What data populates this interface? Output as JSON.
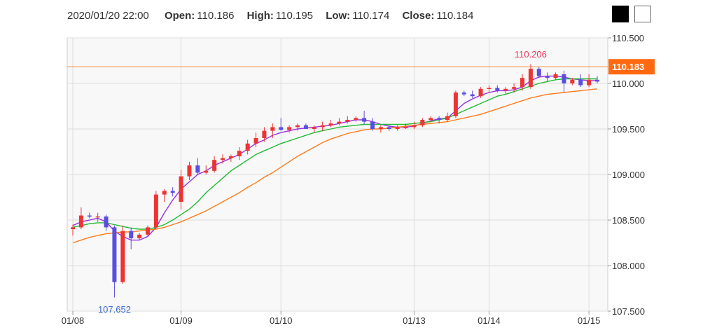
{
  "header": {
    "datetime": "2020/01/20 22:00",
    "open_label": "Open:",
    "open_value": "110.186",
    "high_label": "High:",
    "high_value": "110.195",
    "low_label": "Low:",
    "low_value": "110.174",
    "close_label": "Close:",
    "close_value": "110.184"
  },
  "theme_buttons": [
    "dark",
    "light"
  ],
  "colors": {
    "up": "#ee3333",
    "down": "#5a4ee0",
    "ma_short": "#9b30e0",
    "ma_mid": "#22bb33",
    "ma_long": "#ff7a1a",
    "current_price_line": "#f08a3a",
    "current_price_badge": "#ff6a10",
    "high_annotation": "#e8365a",
    "low_annotation": "#3a6ad0",
    "plot_bg": "#f8f8f8",
    "grid": "#dddddd"
  },
  "chart_data": {
    "type": "candlestick",
    "ylim": [
      107.5,
      110.5
    ],
    "y_ticks": [
      "107.500",
      "108.000",
      "108.500",
      "109.000",
      "109.500",
      "110.000",
      "110.500"
    ],
    "x_ticks": [
      {
        "label": "01/08",
        "index": 0
      },
      {
        "label": "01/09",
        "index": 13
      },
      {
        "label": "01/10",
        "index": 25
      },
      {
        "label": "01/13",
        "index": 41
      },
      {
        "label": "01/14",
        "index": 50
      },
      {
        "label": "01/15",
        "index": 62
      }
    ],
    "current_price": 110.183,
    "current_price_label": "110.183",
    "high_marker": {
      "label": "110.206",
      "value": 110.206,
      "index": 55
    },
    "low_marker": {
      "label": "107.652",
      "value": 107.652,
      "index": 5
    },
    "candles": [
      [
        108.4,
        108.45,
        108.33,
        108.42
      ],
      [
        108.42,
        108.64,
        108.4,
        108.55
      ],
      [
        108.55,
        108.58,
        108.52,
        108.54
      ],
      [
        108.54,
        108.58,
        108.48,
        108.54
      ],
      [
        108.54,
        108.56,
        108.38,
        108.42
      ],
      [
        108.42,
        108.44,
        107.65,
        107.82
      ],
      [
        107.82,
        108.44,
        107.8,
        108.38
      ],
      [
        108.38,
        108.42,
        108.18,
        108.3
      ],
      [
        108.3,
        108.36,
        108.28,
        108.34
      ],
      [
        108.34,
        108.44,
        108.32,
        108.42
      ],
      [
        108.42,
        108.82,
        108.4,
        108.78
      ],
      [
        108.78,
        108.84,
        108.7,
        108.82
      ],
      [
        108.82,
        108.86,
        108.76,
        108.8
      ],
      [
        108.7,
        109.05,
        108.62,
        108.98
      ],
      [
        108.98,
        109.14,
        108.94,
        109.1
      ],
      [
        109.1,
        109.18,
        109.0,
        109.02
      ],
      [
        109.02,
        109.1,
        109.0,
        109.04
      ],
      [
        109.04,
        109.2,
        109.02,
        109.16
      ],
      [
        109.16,
        109.22,
        109.12,
        109.18
      ],
      [
        109.18,
        109.22,
        109.14,
        109.2
      ],
      [
        109.2,
        109.3,
        109.16,
        109.26
      ],
      [
        109.26,
        109.38,
        109.22,
        109.34
      ],
      [
        109.34,
        109.46,
        109.3,
        109.4
      ],
      [
        109.4,
        109.52,
        109.36,
        109.48
      ],
      [
        109.48,
        109.56,
        109.4,
        109.52
      ],
      [
        109.52,
        109.62,
        109.48,
        109.49
      ],
      [
        109.49,
        109.54,
        109.46,
        109.52
      ],
      [
        109.52,
        109.56,
        109.48,
        109.54
      ],
      [
        109.54,
        109.56,
        109.5,
        109.5
      ],
      [
        109.5,
        109.54,
        109.46,
        109.52
      ],
      [
        109.52,
        109.58,
        109.48,
        109.54
      ],
      [
        109.54,
        109.6,
        109.52,
        109.56
      ],
      [
        109.56,
        109.62,
        109.54,
        109.58
      ],
      [
        109.58,
        109.64,
        109.56,
        109.6
      ],
      [
        109.6,
        109.64,
        109.58,
        109.62
      ],
      [
        109.62,
        109.7,
        109.55,
        109.58
      ],
      [
        109.58,
        109.62,
        109.48,
        109.5
      ],
      [
        109.5,
        109.54,
        109.46,
        109.52
      ],
      [
        109.52,
        109.54,
        109.48,
        109.5
      ],
      [
        109.5,
        109.54,
        109.48,
        109.52
      ],
      [
        109.52,
        109.56,
        109.5,
        109.52
      ],
      [
        109.52,
        109.58,
        109.5,
        109.54
      ],
      [
        109.54,
        109.62,
        109.52,
        109.6
      ],
      [
        109.6,
        109.64,
        109.58,
        109.62
      ],
      [
        109.62,
        109.64,
        109.56,
        109.6
      ],
      [
        109.6,
        109.68,
        109.58,
        109.64
      ],
      [
        109.64,
        109.92,
        109.62,
        109.9
      ],
      [
        109.9,
        109.92,
        109.86,
        109.88
      ],
      [
        109.88,
        109.92,
        109.84,
        109.86
      ],
      [
        109.86,
        109.96,
        109.84,
        109.94
      ],
      [
        109.94,
        109.98,
        109.9,
        109.95
      ],
      [
        109.95,
        109.98,
        109.9,
        109.92
      ],
      [
        109.92,
        109.96,
        109.88,
        109.94
      ],
      [
        109.94,
        110.0,
        109.9,
        109.96
      ],
      [
        109.96,
        110.1,
        109.92,
        110.06
      ],
      [
        109.96,
        110.21,
        109.94,
        110.16
      ],
      [
        110.16,
        110.18,
        110.06,
        110.08
      ],
      [
        110.08,
        110.12,
        110.02,
        110.06
      ],
      [
        110.06,
        110.12,
        110.04,
        110.1
      ],
      [
        110.1,
        110.14,
        109.9,
        110.0
      ],
      [
        110.0,
        110.06,
        109.98,
        110.04
      ],
      [
        110.04,
        110.1,
        109.96,
        109.98
      ],
      [
        109.98,
        110.1,
        109.96,
        110.04
      ],
      [
        110.04,
        110.08,
        110.0,
        110.02
      ]
    ],
    "series": [
      {
        "values": [
          108.44,
          108.48,
          108.5,
          108.52,
          108.48,
          108.38,
          108.32,
          108.28,
          108.28,
          108.32,
          108.42,
          108.58,
          108.72,
          108.84,
          108.92,
          109.0,
          109.04,
          109.1,
          109.14,
          109.18,
          109.22,
          109.28,
          109.34,
          109.38,
          109.43,
          109.46,
          109.48,
          109.5,
          109.51,
          109.52,
          109.53,
          109.54,
          109.56,
          109.58,
          109.6,
          109.6,
          109.58,
          109.55,
          109.53,
          109.52,
          109.52,
          109.53,
          109.56,
          109.59,
          109.61,
          109.62,
          109.7,
          109.78,
          109.83,
          109.87,
          109.9,
          109.92,
          109.92,
          109.93,
          109.96,
          110.03,
          110.07,
          110.08,
          110.08,
          110.07,
          110.05,
          110.04,
          110.03,
          110.03
        ]
      },
      {
        "values": [
          108.42,
          108.44,
          108.46,
          108.47,
          108.47,
          108.45,
          108.43,
          108.41,
          108.4,
          108.4,
          108.42,
          108.45,
          108.5,
          108.56,
          108.62,
          108.7,
          108.8,
          108.88,
          108.96,
          109.04,
          109.1,
          109.16,
          109.22,
          109.26,
          109.3,
          109.34,
          109.37,
          109.4,
          109.43,
          109.46,
          109.48,
          109.5,
          109.52,
          109.53,
          109.54,
          109.55,
          109.55,
          109.55,
          109.55,
          109.55,
          109.55,
          109.56,
          109.57,
          109.58,
          109.6,
          109.62,
          109.66,
          109.7,
          109.74,
          109.78,
          109.82,
          109.86,
          109.88,
          109.91,
          109.94,
          109.97,
          110.0,
          110.02,
          110.04,
          110.05,
          110.05,
          110.05,
          110.05,
          110.05
        ]
      },
      {
        "values": [
          108.25,
          108.28,
          108.31,
          108.33,
          108.35,
          108.36,
          108.37,
          108.37,
          108.38,
          108.39,
          108.4,
          108.42,
          108.45,
          108.48,
          108.52,
          108.56,
          108.6,
          108.65,
          108.7,
          108.75,
          108.8,
          108.86,
          108.91,
          108.97,
          109.02,
          109.08,
          109.14,
          109.2,
          109.25,
          109.3,
          109.35,
          109.39,
          109.42,
          109.45,
          109.47,
          109.49,
          109.5,
          109.5,
          109.51,
          109.52,
          109.53,
          109.54,
          109.55,
          109.56,
          109.57,
          109.58,
          109.6,
          109.62,
          109.64,
          109.66,
          109.69,
          109.72,
          109.75,
          109.78,
          109.81,
          109.84,
          109.86,
          109.88,
          109.89,
          109.9,
          109.91,
          109.92,
          109.93,
          109.94
        ]
      }
    ]
  }
}
